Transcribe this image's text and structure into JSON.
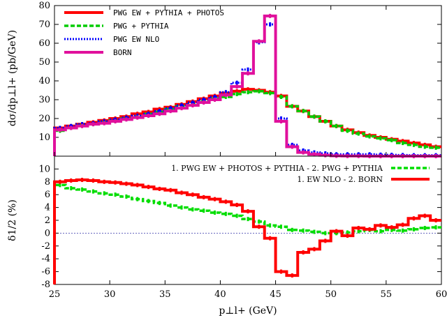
{
  "chart_data": [
    {
      "type": "line",
      "panel": "top",
      "ylabel": "dσ/dp⊥l+ (pb/GeV)",
      "xlim": [
        25,
        60
      ],
      "ylim": [
        0,
        80
      ],
      "yticks": [
        "10",
        "20",
        "30",
        "40",
        "50",
        "60",
        "70",
        "80"
      ],
      "legend_position": "top-left",
      "x_edges": [
        25,
        26,
        27,
        28,
        29,
        30,
        31,
        32,
        33,
        34,
        35,
        36,
        37,
        38,
        39,
        40,
        41,
        42,
        43,
        44,
        45,
        46,
        47,
        48,
        49,
        50,
        51,
        52,
        53,
        54,
        55,
        56,
        57,
        58,
        59,
        60
      ],
      "series": [
        {
          "name": "PWG EW + PYTHIA + PHOTOS",
          "color": "#ff0000",
          "style": "solid",
          "values": [
            15,
            16,
            17,
            18,
            19,
            20,
            21,
            22.5,
            23.5,
            25,
            26,
            27.5,
            29,
            30.5,
            32,
            33.5,
            34.5,
            35.5,
            35,
            34,
            32,
            26.5,
            24,
            21,
            18.5,
            16,
            14,
            12.5,
            11,
            10,
            9,
            8,
            7,
            6,
            5
          ]
        },
        {
          "name": "PWG + PYTHIA",
          "color": "#00cc00",
          "style": "dashed",
          "values": [
            13.5,
            15,
            16.5,
            17,
            18,
            19,
            20,
            21,
            22.5,
            23.5,
            25,
            26.5,
            27.5,
            29,
            30.5,
            31.5,
            33,
            34,
            34.5,
            33.5,
            31.5,
            26.5,
            24,
            21,
            18.5,
            16,
            13.5,
            12,
            10.5,
            9.5,
            8.5,
            7,
            6,
            5,
            4.5
          ]
        },
        {
          "name": "PWG EW NLO",
          "color": "#0000ff",
          "style": "dotted",
          "values": [
            15,
            16,
            17,
            17.5,
            18.5,
            19.5,
            20.5,
            21.5,
            22.5,
            24,
            25.5,
            27,
            28.5,
            30,
            31.5,
            34,
            39,
            46,
            60.5,
            70,
            20,
            6,
            3,
            2,
            1.5,
            1,
            1,
            1,
            1,
            0.8,
            0.7,
            0.6,
            0.5,
            0.5,
            0.5
          ]
        },
        {
          "name": "BORN",
          "color": "#e0109c",
          "style": "solid",
          "values": [
            14,
            15,
            16,
            17,
            17.5,
            18.5,
            19.5,
            20.5,
            21.5,
            22.5,
            24,
            25.5,
            27,
            28.5,
            30,
            32.5,
            37,
            44,
            61,
            74.5,
            18.5,
            5,
            2,
            1,
            0.5,
            0.2,
            0.1,
            0.1,
            0,
            0,
            0,
            0,
            0,
            0,
            0
          ]
        }
      ]
    },
    {
      "type": "line",
      "panel": "bottom",
      "xlabel": "p⊥l+ (GeV)",
      "ylabel": "δ1/2 (%)",
      "xlim": [
        25,
        60
      ],
      "ylim": [
        -8,
        12
      ],
      "xticks": [
        "25",
        "30",
        "35",
        "40",
        "45",
        "50",
        "55",
        "60"
      ],
      "yticks": [
        "-8",
        "-6",
        "-4",
        "-2",
        "0",
        "2",
        "4",
        "6",
        "8",
        "10"
      ],
      "legend_position": "top-right",
      "x_edges": [
        25,
        26,
        27,
        28,
        29,
        30,
        31,
        32,
        33,
        34,
        35,
        36,
        37,
        38,
        39,
        40,
        41,
        42,
        43,
        44,
        45,
        46,
        47,
        48,
        49,
        50,
        51,
        52,
        53,
        54,
        55,
        56,
        57,
        58,
        59,
        60
      ],
      "series": [
        {
          "name": "1. PWG EW + PHOTOS + PYTHIA - 2. PWG + PYTHIA",
          "color": "#00dd00",
          "style": "dashed",
          "values": [
            7.5,
            7,
            6.8,
            6.5,
            6.2,
            6,
            5.7,
            5.3,
            5,
            4.7,
            4.3,
            4,
            3.7,
            3.5,
            3.2,
            3,
            2.7,
            2.2,
            1.8,
            1.2,
            1,
            0.5,
            0.4,
            0.2,
            0,
            0,
            0.1,
            0.3,
            0.5,
            0.3,
            0.5,
            0.4,
            0.6,
            0.8,
            0.9
          ]
        },
        {
          "name": "1. EW NLO - 2. BORN",
          "color": "#ff0000",
          "style": "solid",
          "values": [
            8,
            8.2,
            8.3,
            8.2,
            8,
            7.9,
            7.7,
            7.5,
            7.2,
            6.9,
            6.7,
            6.3,
            6,
            5.6,
            5.3,
            4.9,
            4.4,
            3.4,
            1,
            -0.8,
            -6,
            -6.6,
            -3,
            -2.5,
            -1.2,
            0.3,
            -0.4,
            0.8,
            0.6,
            1.2,
            0.9,
            1.3,
            2.3,
            2.7,
            2
          ]
        }
      ]
    }
  ]
}
